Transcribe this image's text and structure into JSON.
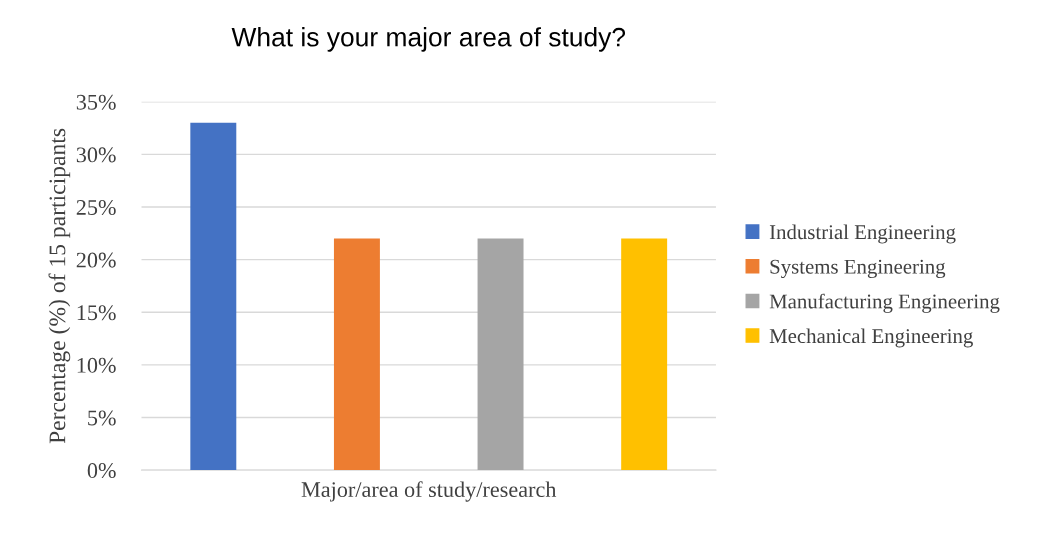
{
  "chart_data": {
    "type": "bar",
    "title": "What is your major area of study?",
    "xlabel": "Major/area of study/research",
    "ylabel": "Percentage (%) of 15 participants",
    "categories": [
      null
    ],
    "series": [
      {
        "name": "Industrial Engineering",
        "color": "#4472c4",
        "values": [
          33
        ]
      },
      {
        "name": "Systems Engineering",
        "color": "#ed7d31",
        "values": [
          22
        ]
      },
      {
        "name": "Manufacturing Engineering",
        "color": "#a5a5a5",
        "values": [
          22
        ]
      },
      {
        "name": "Mechanical Engineering",
        "color": "#ffc000",
        "values": [
          22
        ]
      }
    ],
    "ylim": [
      0,
      35
    ],
    "yticks": [
      {
        "value": 0,
        "label": "0%"
      },
      {
        "value": 5,
        "label": "5%"
      },
      {
        "value": 10,
        "label": "10%"
      },
      {
        "value": 15,
        "label": "15%"
      },
      {
        "value": 20,
        "label": "20%"
      },
      {
        "value": 25,
        "label": "25%"
      },
      {
        "value": 30,
        "label": "30%"
      },
      {
        "value": 35,
        "label": "35%"
      }
    ],
    "grid": "y",
    "legend": "right",
    "tick_labels": "y"
  }
}
